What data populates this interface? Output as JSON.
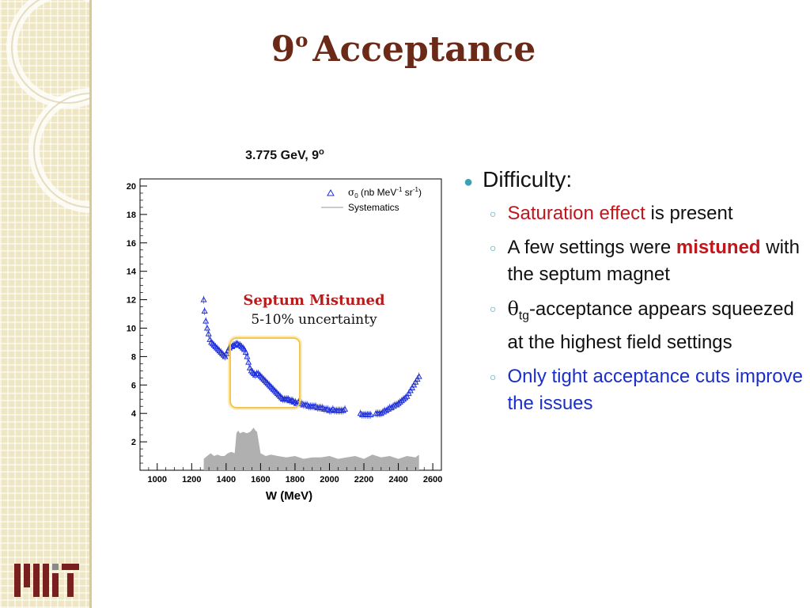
{
  "slide": {
    "title_number": "9",
    "title_degree": "o",
    "title_word": "Acceptance",
    "logo": "MIT"
  },
  "bullets": {
    "heading": "Difficulty:",
    "item1_red": "Saturation effect",
    "item1_rest": " is present",
    "item2_pre": "A few settings were ",
    "item2_bold": "mistuned",
    "item2_rest": " with the septum magnet",
    "item3_theta": "θ",
    "item3_sub": "tg",
    "item3_rest": "-acceptance appears squeezed at the highest field settings",
    "item4_blue": "Only tight acceptance cuts improve the issues"
  },
  "annotation": {
    "line1": "Septum Mistuned",
    "line2": "5-10% uncertainty"
  },
  "colors": {
    "title": "#6b2a17",
    "accent_red": "#c0161c",
    "accent_blue": "#1a2ecc",
    "bullet_teal": "#3ca0b8",
    "highlight": "#f2c84b",
    "data_points": "#1f2fd8",
    "systematics_fill": "#b0b0b0"
  },
  "chart_data": {
    "type": "scatter",
    "title_main": "3.775 GeV, 9",
    "title_degree": "o",
    "xlabel": "W (MeV)",
    "ylabel": "",
    "xlim": [
      900,
      2650
    ],
    "ylim": [
      0,
      20.5
    ],
    "x_ticks": [
      1000,
      1200,
      1400,
      1600,
      1800,
      2000,
      2200,
      2400,
      2600
    ],
    "y_ticks": [
      2,
      4,
      6,
      8,
      10,
      12,
      14,
      16,
      18,
      20
    ],
    "legend_position": "top-right",
    "legend": [
      {
        "symbol": "σ",
        "sub": "0",
        "text": " (nb MeV",
        "sup1": "-1",
        "text2": " sr",
        "sup2": "-1",
        "text3": ")",
        "marker": "triangle"
      },
      {
        "text": "Systematics",
        "marker": "line"
      }
    ],
    "series": [
      {
        "name": "σ0 (nb MeV-1 sr-1)",
        "x": [
          1270,
          1275,
          1282,
          1290,
          1298,
          1306,
          1314,
          1322,
          1330,
          1338,
          1346,
          1354,
          1362,
          1370,
          1378,
          1386,
          1394,
          1402,
          1410,
          1418,
          1426,
          1434,
          1442,
          1450,
          1458,
          1466,
          1474,
          1482,
          1490,
          1498,
          1506,
          1514,
          1522,
          1530,
          1538,
          1546,
          1554,
          1562,
          1570,
          1578,
          1586,
          1594,
          1602,
          1610,
          1618,
          1626,
          1634,
          1642,
          1650,
          1658,
          1666,
          1674,
          1682,
          1690,
          1698,
          1706,
          1714,
          1722,
          1730,
          1738,
          1746,
          1754,
          1762,
          1770,
          1778,
          1786,
          1794,
          1802,
          1810,
          1820,
          1830,
          1840,
          1850,
          1860,
          1870,
          1880,
          1890,
          1900,
          1910,
          1920,
          1930,
          1940,
          1950,
          1960,
          1970,
          1980,
          1990,
          2000,
          2010,
          2020,
          2030,
          2040,
          2050,
          2060,
          2070,
          2080,
          2090,
          2180,
          2190,
          2200,
          2210,
          2220,
          2230,
          2240,
          2270,
          2280,
          2290,
          2300,
          2310,
          2320,
          2330,
          2340,
          2350,
          2360,
          2370,
          2380,
          2390,
          2400,
          2410,
          2420,
          2430,
          2440,
          2450,
          2460,
          2470,
          2480,
          2490,
          2500,
          2510,
          2520
        ],
        "values": [
          12.0,
          11.2,
          10.5,
          10.0,
          9.6,
          9.2,
          9.0,
          8.9,
          8.8,
          8.7,
          8.6,
          8.5,
          8.4,
          8.3,
          8.2,
          8.1,
          8.0,
          8.2,
          8.4,
          8.6,
          8.7,
          8.7,
          8.8,
          8.8,
          8.9,
          8.9,
          8.8,
          8.8,
          8.7,
          8.6,
          8.5,
          8.3,
          8.0,
          7.6,
          7.2,
          7.0,
          6.9,
          6.8,
          6.7,
          6.8,
          6.8,
          6.7,
          6.6,
          6.5,
          6.4,
          6.3,
          6.2,
          6.1,
          6.0,
          5.9,
          5.8,
          5.7,
          5.6,
          5.5,
          5.4,
          5.3,
          5.2,
          5.1,
          5.0,
          5.0,
          5.0,
          5.0,
          5.0,
          4.9,
          4.9,
          4.9,
          4.8,
          4.8,
          4.7,
          4.8,
          4.7,
          4.7,
          4.6,
          4.6,
          4.6,
          4.5,
          4.5,
          4.5,
          4.5,
          4.5,
          4.4,
          4.4,
          4.4,
          4.4,
          4.3,
          4.3,
          4.3,
          4.2,
          4.2,
          4.3,
          4.2,
          4.2,
          4.2,
          4.2,
          4.2,
          4.2,
          4.3,
          4.0,
          3.9,
          3.9,
          3.9,
          3.9,
          3.9,
          3.9,
          4.0,
          4.0,
          4.0,
          4.0,
          4.1,
          4.2,
          4.2,
          4.3,
          4.4,
          4.4,
          4.5,
          4.6,
          4.6,
          4.7,
          4.8,
          4.9,
          5.0,
          5.1,
          5.2,
          5.4,
          5.6,
          5.8,
          6.0,
          6.2,
          6.4,
          6.6
        ]
      },
      {
        "name": "Systematics",
        "type": "area",
        "x": [
          1270,
          1290,
          1310,
          1330,
          1350,
          1370,
          1390,
          1410,
          1430,
          1450,
          1460,
          1470,
          1480,
          1500,
          1520,
          1540,
          1560,
          1570,
          1580,
          1600,
          1630,
          1660,
          1700,
          1750,
          1800,
          1850,
          1900,
          1950,
          2000,
          2050,
          2100,
          2150,
          2200,
          2250,
          2300,
          2350,
          2400,
          2450,
          2500,
          2520
        ],
        "values": [
          0.8,
          1.0,
          1.2,
          1.0,
          1.1,
          1.0,
          1.0,
          1.2,
          1.3,
          1.2,
          2.6,
          2.8,
          2.6,
          2.7,
          2.6,
          2.7,
          3.0,
          2.8,
          2.7,
          1.2,
          1.0,
          1.1,
          1.0,
          0.9,
          1.0,
          0.8,
          0.9,
          0.9,
          1.0,
          0.8,
          0.9,
          1.0,
          0.8,
          1.1,
          0.9,
          1.0,
          0.8,
          1.0,
          0.9,
          1.1
        ]
      }
    ]
  }
}
